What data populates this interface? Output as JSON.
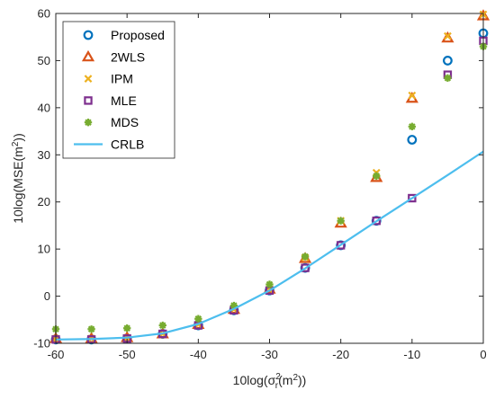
{
  "chart_data": {
    "type": "scatter",
    "xlabel": "10log(σr²(m²))",
    "ylabel": "10log(MSE(m²))",
    "xlim": [
      -60,
      0
    ],
    "ylim": [
      -10,
      60
    ],
    "x_ticks": [
      "-60",
      "-50",
      "-40",
      "-30",
      "-20",
      "-10",
      "0"
    ],
    "y_ticks": [
      "-10",
      "0",
      "10",
      "20",
      "30",
      "40",
      "50",
      "60"
    ],
    "grid": false,
    "legend_position": "top-left",
    "series": [
      {
        "name": "Proposed",
        "marker": "circle",
        "color": "#0072BD",
        "x": [
          -60,
          -55,
          -50,
          -45,
          -40,
          -35,
          -30,
          -25,
          -20,
          -15,
          -10,
          -5,
          0
        ],
        "y": [
          -9.2,
          -9.2,
          -9.0,
          -8.0,
          -6.2,
          -3.0,
          1.2,
          6.0,
          10.8,
          16.0,
          33.2,
          50.0,
          55.8
        ]
      },
      {
        "name": "2WLS",
        "marker": "triangle",
        "color": "#D95319",
        "x": [
          -60,
          -55,
          -50,
          -45,
          -40,
          -35,
          -30,
          -25,
          -20,
          -15,
          -10,
          -5,
          0
        ],
        "y": [
          -9.0,
          -9.0,
          -8.8,
          -8.0,
          -6.0,
          -2.8,
          1.5,
          8.0,
          15.5,
          25.2,
          42.0,
          54.8,
          59.5
        ]
      },
      {
        "name": "IPM",
        "marker": "x",
        "color": "#EDB120",
        "x": [
          -60,
          -55,
          -50,
          -45,
          -40,
          -35,
          -30,
          -25,
          -20,
          -15,
          -10,
          -5,
          0
        ],
        "y": [
          -9.0,
          -9.0,
          -8.8,
          -8.0,
          -6.0,
          -2.8,
          1.4,
          8.2,
          16.0,
          26.2,
          42.6,
          55.2,
          59.8
        ]
      },
      {
        "name": "MLE",
        "marker": "square",
        "color": "#7E2F8E",
        "x": [
          -60,
          -55,
          -50,
          -45,
          -40,
          -35,
          -30,
          -25,
          -20,
          -15,
          -10,
          -5,
          0
        ],
        "y": [
          -9.2,
          -9.2,
          -9.0,
          -8.0,
          -6.2,
          -3.0,
          1.2,
          6.0,
          10.8,
          16.0,
          20.8,
          47.0,
          54.2
        ]
      },
      {
        "name": "MDS",
        "marker": "asterisk",
        "color": "#77AC30",
        "x": [
          -60,
          -55,
          -50,
          -45,
          -40,
          -35,
          -30,
          -25,
          -20,
          -15,
          -10,
          -5,
          0
        ],
        "y": [
          -7.0,
          -7.0,
          -6.8,
          -6.2,
          -4.8,
          -2.0,
          2.5,
          8.4,
          16.0,
          25.5,
          36.0,
          46.3,
          53.0
        ]
      },
      {
        "name": "CRLB",
        "marker": "line",
        "color": "#4DBEEE",
        "x": [
          -60,
          -55,
          -50,
          -45,
          -40,
          -35,
          -30,
          -25,
          -20,
          -15,
          -10,
          -5,
          0
        ],
        "y": [
          -9.2,
          -9.1,
          -8.8,
          -7.9,
          -5.9,
          -2.7,
          1.2,
          5.9,
          10.9,
          15.9,
          20.8,
          25.7,
          30.7
        ]
      }
    ]
  }
}
